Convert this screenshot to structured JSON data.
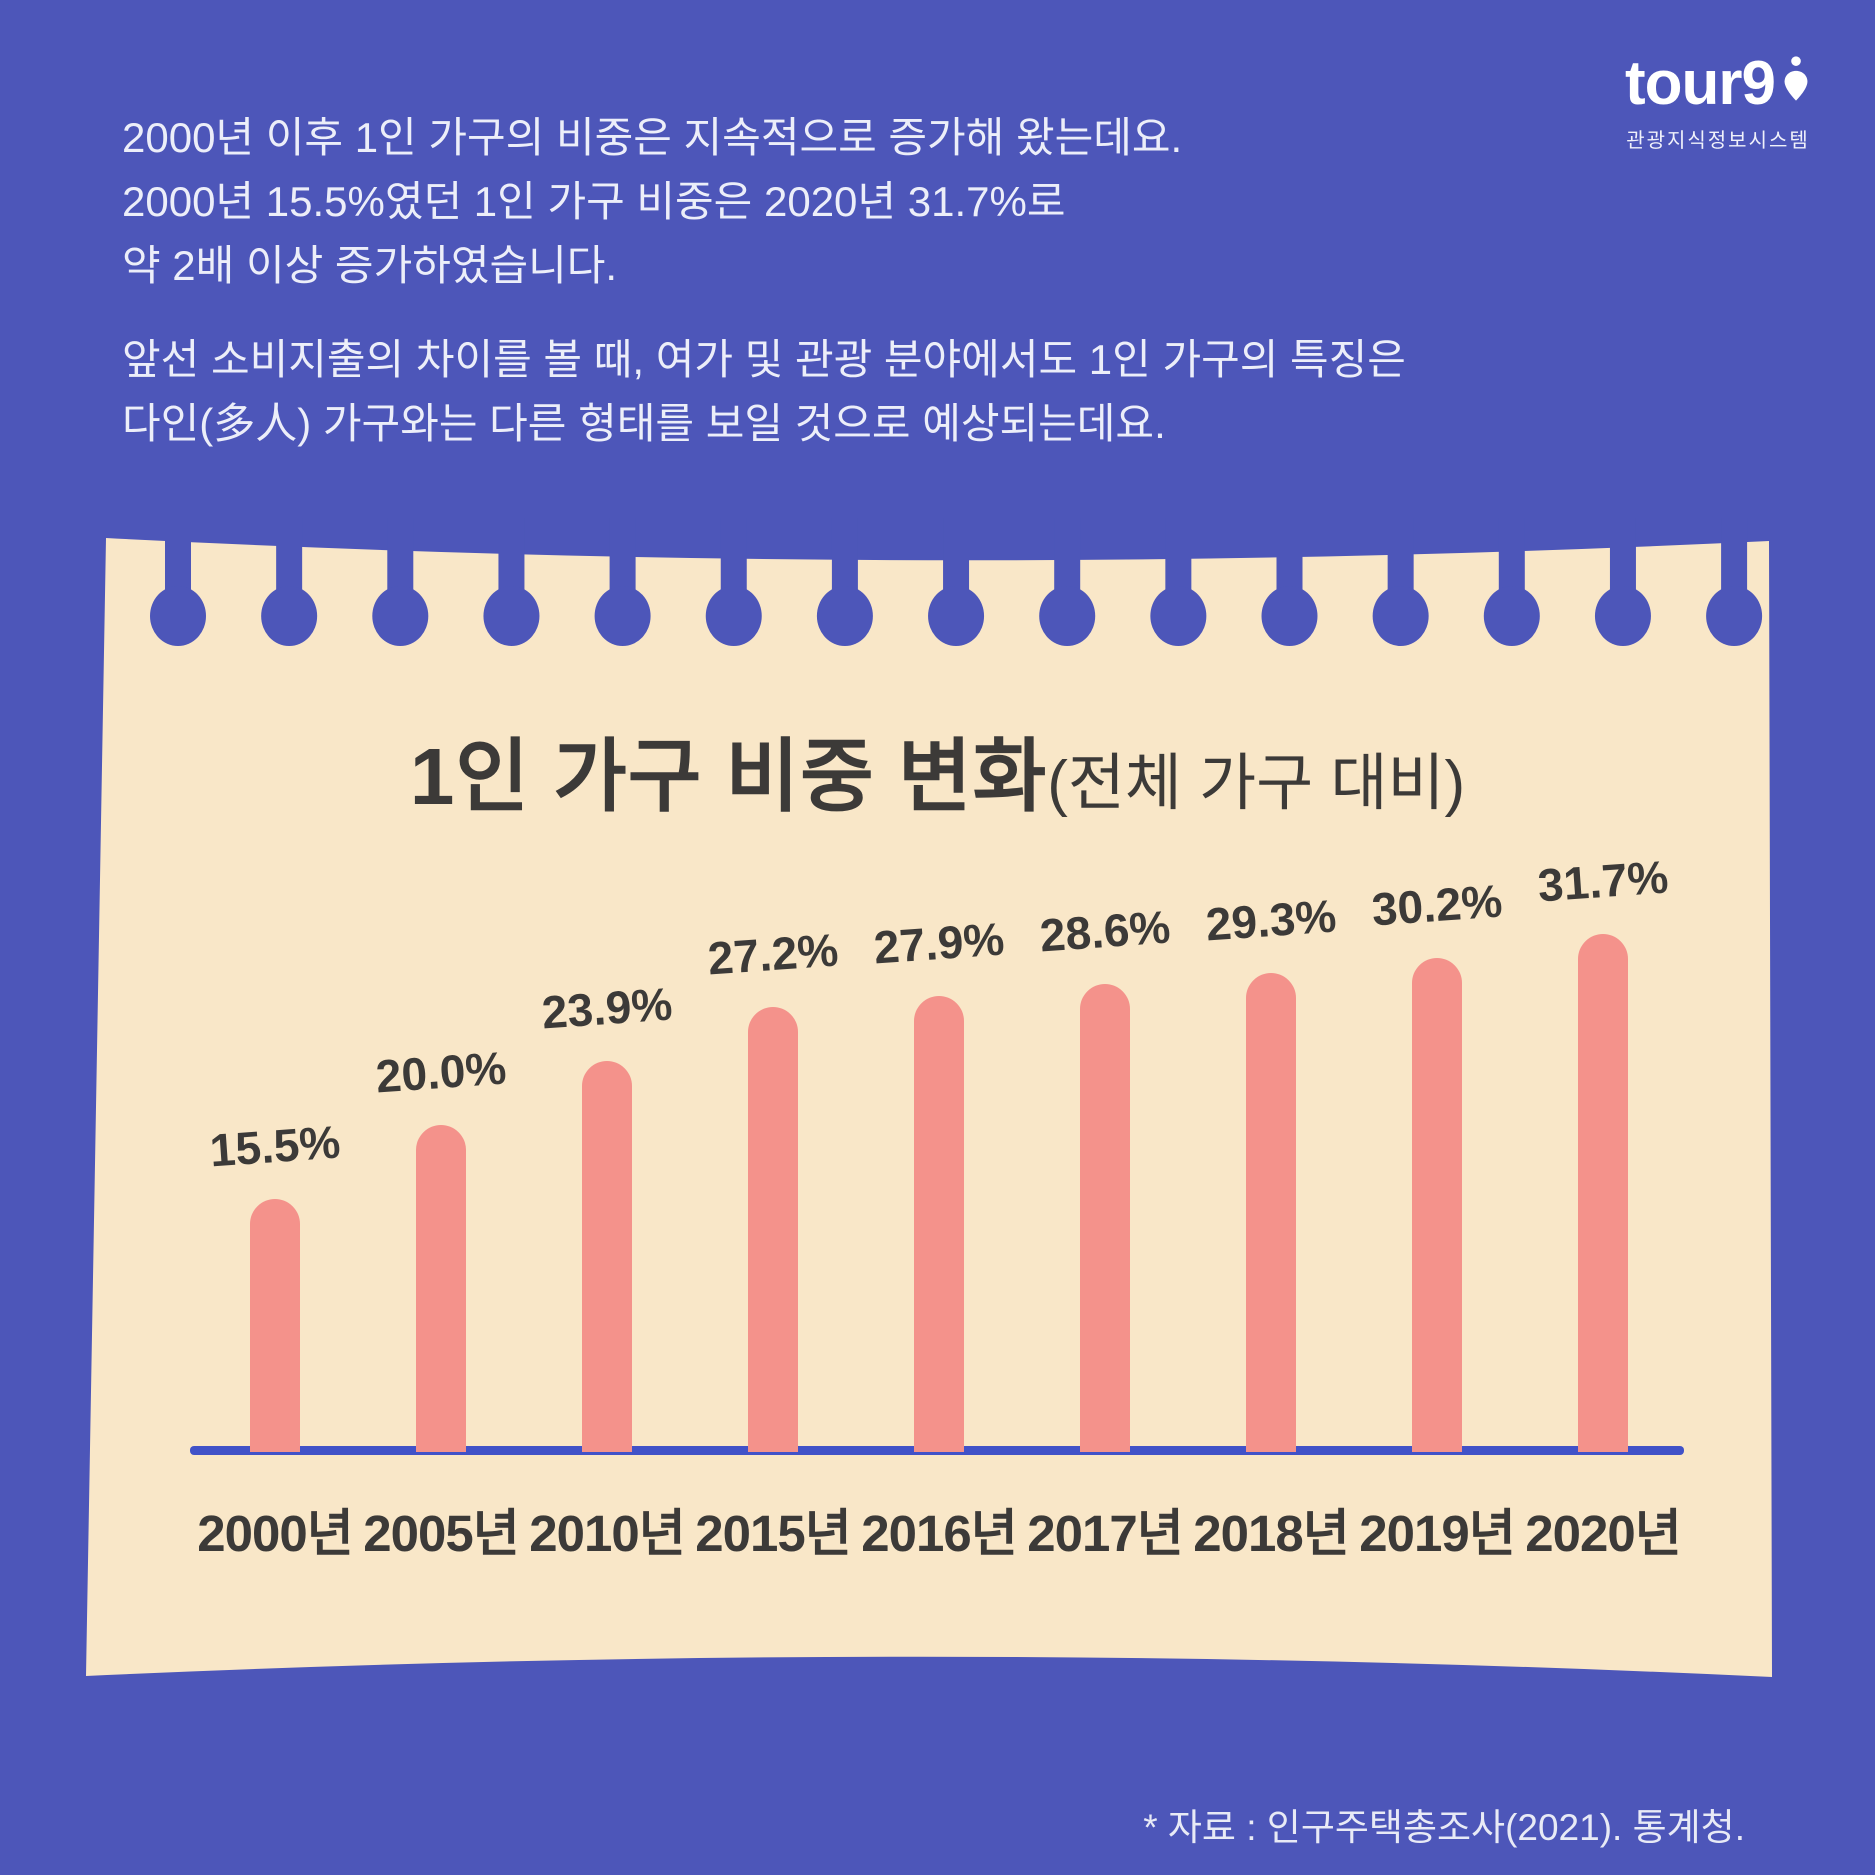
{
  "intro": {
    "p1": [
      "2000년 이후 1인 가구의 비중은 지속적으로 증가해 왔는데요.",
      "2000년 15.5%였던 1인 가구 비중은 2020년 31.7%로",
      "약 2배 이상 증가하였습니다."
    ],
    "p2": [
      "앞선 소비지출의 차이를 볼 때, 여가 및 관광 분야에서도 1인 가구의 특징은",
      "다인(多人) 가구와는 다른 형태를 보일 것으로 예상되는데요."
    ]
  },
  "logo": {
    "wordmark": "tour9",
    "caption": "관광지식정보시스템"
  },
  "chart_data": {
    "type": "bar",
    "title": "1인 가구 비중 변화",
    "title_suffix": "(전체 가구 대비)",
    "categories": [
      "2000년",
      "2005년",
      "2010년",
      "2015년",
      "2016년",
      "2017년",
      "2018년",
      "2019년",
      "2020년"
    ],
    "values": [
      15.5,
      20.0,
      23.9,
      27.2,
      27.9,
      28.6,
      29.3,
      30.2,
      31.7
    ],
    "value_labels": [
      "15.5%",
      "20.0%",
      "23.9%",
      "27.2%",
      "27.9%",
      "28.6%",
      "29.3%",
      "30.2%",
      "31.7%"
    ],
    "unit": "%",
    "ylim": [
      0,
      35
    ],
    "grid": false,
    "legend": "none"
  },
  "footer": {
    "source": "* 자료 : 인구주택총조사(2021). 통계청."
  },
  "colors": {
    "background": "#4d56b9",
    "paper": "#f9e7c8",
    "bar": "#f4928b",
    "axis": "#4152c8",
    "ink": "#3c3a38",
    "light_text": "#eceef9"
  }
}
